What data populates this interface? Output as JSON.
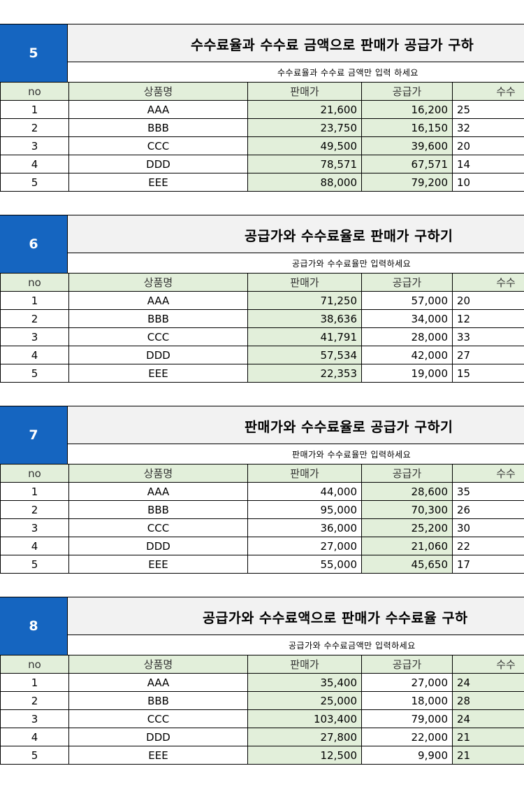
{
  "blocks": [
    {
      "number": "5",
      "title": "수수료율과 수수료 금액으로 판매가 공급가 구하",
      "subtitle": "수수료율과 수수료 금액만 입력 하세요",
      "headers": [
        "no",
        "상품명",
        "판매가",
        "공급가",
        "수수"
      ],
      "rows": [
        [
          "1",
          "AAA",
          "21,600",
          "16,200",
          "25"
        ],
        [
          "2",
          "BBB",
          "23,750",
          "16,150",
          "32"
        ],
        [
          "3",
          "CCC",
          "49,500",
          "39,600",
          "20"
        ],
        [
          "4",
          "DDD",
          "78,571",
          "67,571",
          "14"
        ],
        [
          "5",
          "EEE",
          "88,000",
          "79,200",
          "10"
        ]
      ]
    },
    {
      "number": "6",
      "title": "공급가와 수수료율로 판매가 구하기",
      "subtitle": "공급가와 수수료율만 입력하세요",
      "headers": [
        "no",
        "상품명",
        "판매가",
        "공급가",
        "수수"
      ],
      "rows": [
        [
          "1",
          "AAA",
          "71,250",
          "57,000",
          "20"
        ],
        [
          "2",
          "BBB",
          "38,636",
          "34,000",
          "12"
        ],
        [
          "3",
          "CCC",
          "41,791",
          "28,000",
          "33"
        ],
        [
          "4",
          "DDD",
          "57,534",
          "42,000",
          "27"
        ],
        [
          "5",
          "EEE",
          "22,353",
          "19,000",
          "15"
        ]
      ]
    },
    {
      "number": "7",
      "title": "판매가와 수수료율로 공급가 구하기",
      "subtitle": "판매가와 수수료율만 입력하세요",
      "headers": [
        "no",
        "상품명",
        "판매가",
        "공급가",
        "수수"
      ],
      "rows": [
        [
          "1",
          "AAA",
          "44,000",
          "28,600",
          "35"
        ],
        [
          "2",
          "BBB",
          "95,000",
          "70,300",
          "26"
        ],
        [
          "3",
          "CCC",
          "36,000",
          "25,200",
          "30"
        ],
        [
          "4",
          "DDD",
          "27,000",
          "21,060",
          "22"
        ],
        [
          "5",
          "EEE",
          "55,000",
          "45,650",
          "17"
        ]
      ]
    },
    {
      "number": "8",
      "title": "공급가와 수수료액으로 판매가 수수료율 구하",
      "subtitle": "공급가와 수수료금액만 입력하세요",
      "headers": [
        "no",
        "상품명",
        "판매가",
        "공급가",
        "수수"
      ],
      "rows": [
        [
          "1",
          "AAA",
          "35,400",
          "27,000",
          "24"
        ],
        [
          "2",
          "BBB",
          "25,000",
          "18,000",
          "28"
        ],
        [
          "3",
          "CCC",
          "103,400",
          "79,000",
          "24"
        ],
        [
          "4",
          "DDD",
          "27,800",
          "22,000",
          "21"
        ],
        [
          "5",
          "EEE",
          "12,500",
          "9,900",
          "21"
        ]
      ]
    }
  ],
  "colors": {
    "header_fill": "#1565c0",
    "input_fill": "#e2efda",
    "title_fill": "#f2f2f2"
  }
}
